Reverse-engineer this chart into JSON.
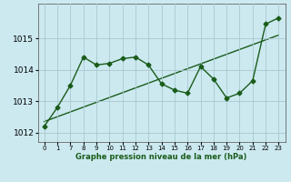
{
  "x_indices": [
    0,
    1,
    2,
    3,
    4,
    5,
    6,
    7,
    8,
    9,
    10,
    11,
    12,
    13,
    14,
    15,
    16,
    17,
    18
  ],
  "x_labels": [
    "0",
    "1",
    "7",
    "8",
    "9",
    "10",
    "11",
    "12",
    "13",
    "14",
    "15",
    "16",
    "17",
    "18",
    "19",
    "20",
    "21",
    "22",
    "23"
  ],
  "y": [
    1012.2,
    1012.8,
    1013.5,
    1014.4,
    1014.15,
    1014.2,
    1014.35,
    1014.4,
    1014.15,
    1013.55,
    1013.35,
    1013.25,
    1014.1,
    1013.7,
    1013.1,
    1013.25,
    1013.65,
    1015.45,
    1015.65
  ],
  "trend_x": [
    0,
    18
  ],
  "trend_y": [
    1012.35,
    1015.1
  ],
  "bg_color": "#cce9f0",
  "line_color": "#1a5c1a",
  "grid_color": "#aac8d0",
  "xlabel": "Graphe pression niveau de la mer (hPa)",
  "yticks": [
    1012,
    1013,
    1014,
    1015
  ],
  "ylim": [
    1011.7,
    1016.1
  ],
  "xlim": [
    -0.5,
    18.5
  ]
}
